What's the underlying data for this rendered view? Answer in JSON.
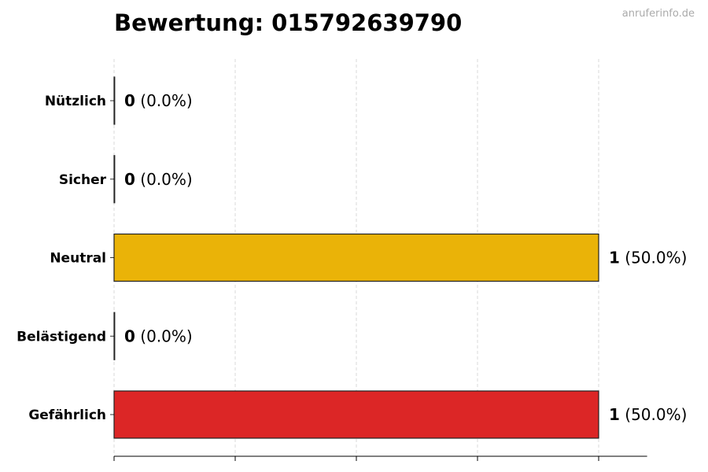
{
  "chart_data": {
    "type": "bar",
    "orientation": "horizontal",
    "title": "Bewertung: 015792639790",
    "watermark": "anruferinfo.de",
    "categories": [
      "Nützlich",
      "Sicher",
      "Neutral",
      "Belästigend",
      "Gefährlich"
    ],
    "values": [
      0,
      0,
      1,
      0,
      1
    ],
    "percent_labels": [
      "(0.0%)",
      "(0.0%)",
      "(50.0%)",
      "(0.0%)",
      "(50.0%)"
    ],
    "colors": [
      "#16a34a",
      "#22c55e",
      "#eab308",
      "#f97316",
      "#dc2626"
    ],
    "xlim": [
      0,
      1.1
    ],
    "xticks": [
      0,
      0.25,
      0.5,
      0.75,
      1
    ],
    "xtick_labels_shown": false,
    "grid": "x, dashed",
    "xlabel": "",
    "ylabel": ""
  }
}
